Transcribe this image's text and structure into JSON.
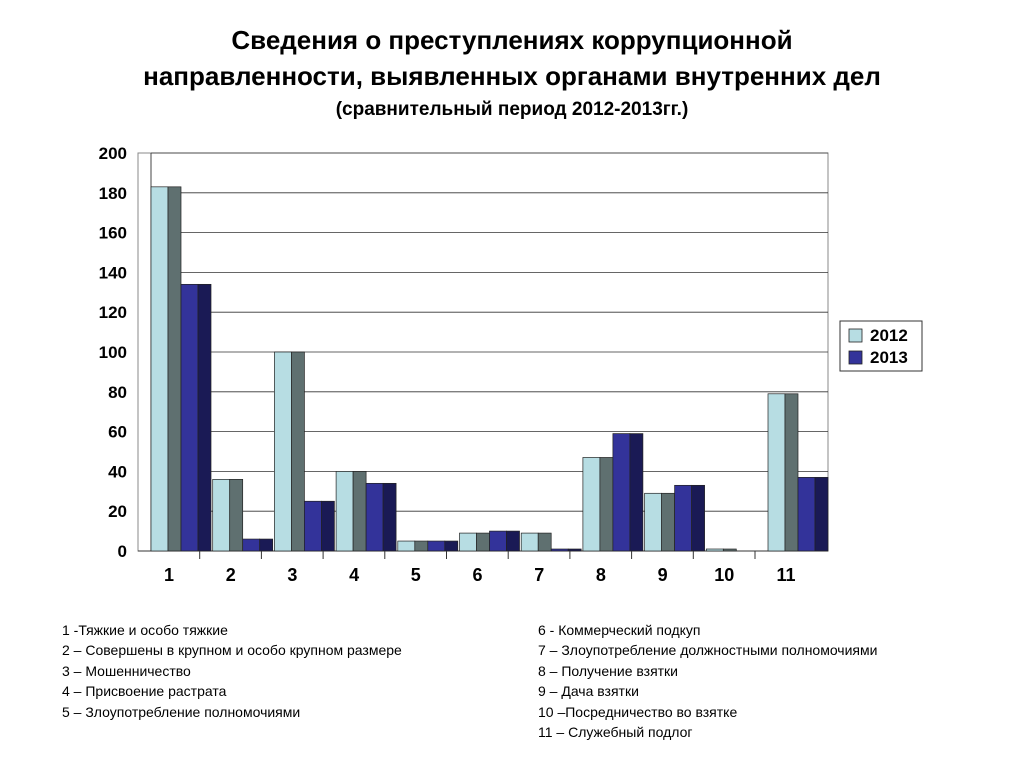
{
  "title": {
    "line1": "Сведения о преступлениях коррупционной",
    "line2": "направленности, выявленных органами внутренних дел",
    "subtitle": "(сравнительный период 2012-2013гг.)"
  },
  "chart_data": {
    "type": "bar",
    "title": "Сведения о преступлениях коррупционной направленности, выявленных органами внутренних дел (сравнительный период 2012-2013гг.)",
    "categories": [
      "1",
      "2",
      "3",
      "4",
      "5",
      "6",
      "7",
      "8",
      "9",
      "10",
      "11"
    ],
    "series": [
      {
        "name": "2012",
        "values": [
          183,
          36,
          100,
          40,
          5,
          9,
          9,
          47,
          29,
          1,
          79
        ],
        "color": "#b7dde3",
        "side_color": "#5f7070"
      },
      {
        "name": "2013",
        "values": [
          134,
          6,
          25,
          34,
          5,
          10,
          1,
          59,
          33,
          0,
          37
        ],
        "color": "#33339a",
        "side_color": "#1a1a55"
      }
    ],
    "ylim": [
      0,
      200
    ],
    "yticks": [
      "0",
      "20",
      "40",
      "60",
      "80",
      "100",
      "120",
      "140",
      "160",
      "180",
      "200"
    ],
    "grid": true,
    "legend": "right",
    "xlabel": "",
    "ylabel": ""
  },
  "notes": {
    "left": [
      "1 -Тяжкие и особо тяжкие",
      "2 – Совершены в крупном и особо крупном размере",
      "3 – Мошенничество",
      "4 – Присвоение растрата",
      "5 – Злоупотребление полномочиями"
    ],
    "right": [
      "6 - Коммерческий подкуп",
      "7 – Злоупотребление должностными полномочиями",
      "8 –  Получение взятки",
      "9 – Дача взятки",
      "10 –Посредничество во взятке",
      "11 – Служебный подлог"
    ]
  }
}
